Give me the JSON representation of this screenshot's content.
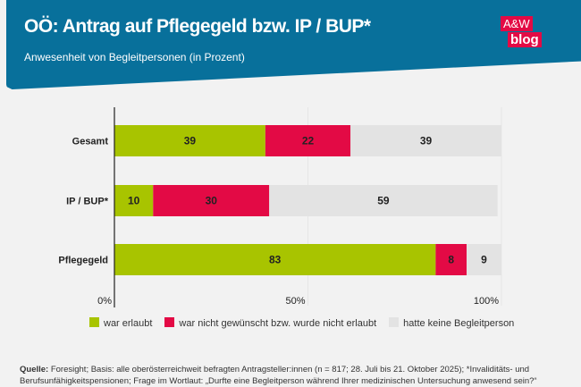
{
  "header": {
    "title": "OÖ: Antrag auf Pflegegeld bzw. IP / BUP*",
    "subtitle": "Anwesenheit von Begleitpersonen (in Prozent)",
    "logo": {
      "line1": "A&W",
      "line2": "blog"
    }
  },
  "colors": {
    "header": "#08709b",
    "logo": "#e30a45"
  },
  "chart_data": {
    "type": "bar",
    "orientation": "horizontal",
    "stacked": true,
    "categories": [
      "Gesamt",
      "IP / BUP*",
      "Pflegegeld"
    ],
    "series": [
      {
        "name": "war erlaubt",
        "color": "#a8c400",
        "values": [
          39,
          10,
          83
        ]
      },
      {
        "name": "war nicht gewünscht bzw. wurde nicht erlaubt",
        "color": "#e30a45",
        "values": [
          22,
          30,
          8
        ]
      },
      {
        "name": "hatte keine Begleitperson",
        "color": "#e3e3e3",
        "values": [
          39,
          59,
          9
        ]
      }
    ],
    "xlim": [
      0,
      100
    ],
    "xticks": [
      "0%",
      "50%",
      "100%"
    ],
    "legend": "bottom",
    "grid": true
  },
  "source": {
    "label": "Quelle:",
    "text": " Foresight; Basis: alle oberösterreichweit befragten Antragsteller:innen (n = 817; 28. Juli bis 21. Oktober 2025); *Invaliditäts- und Berufsunfähigkeitspensionen; Frage im Wortlaut: „Durfte eine Begleitperson während Ihrer medizinischen Untersuchung anwesend sein?“"
  }
}
